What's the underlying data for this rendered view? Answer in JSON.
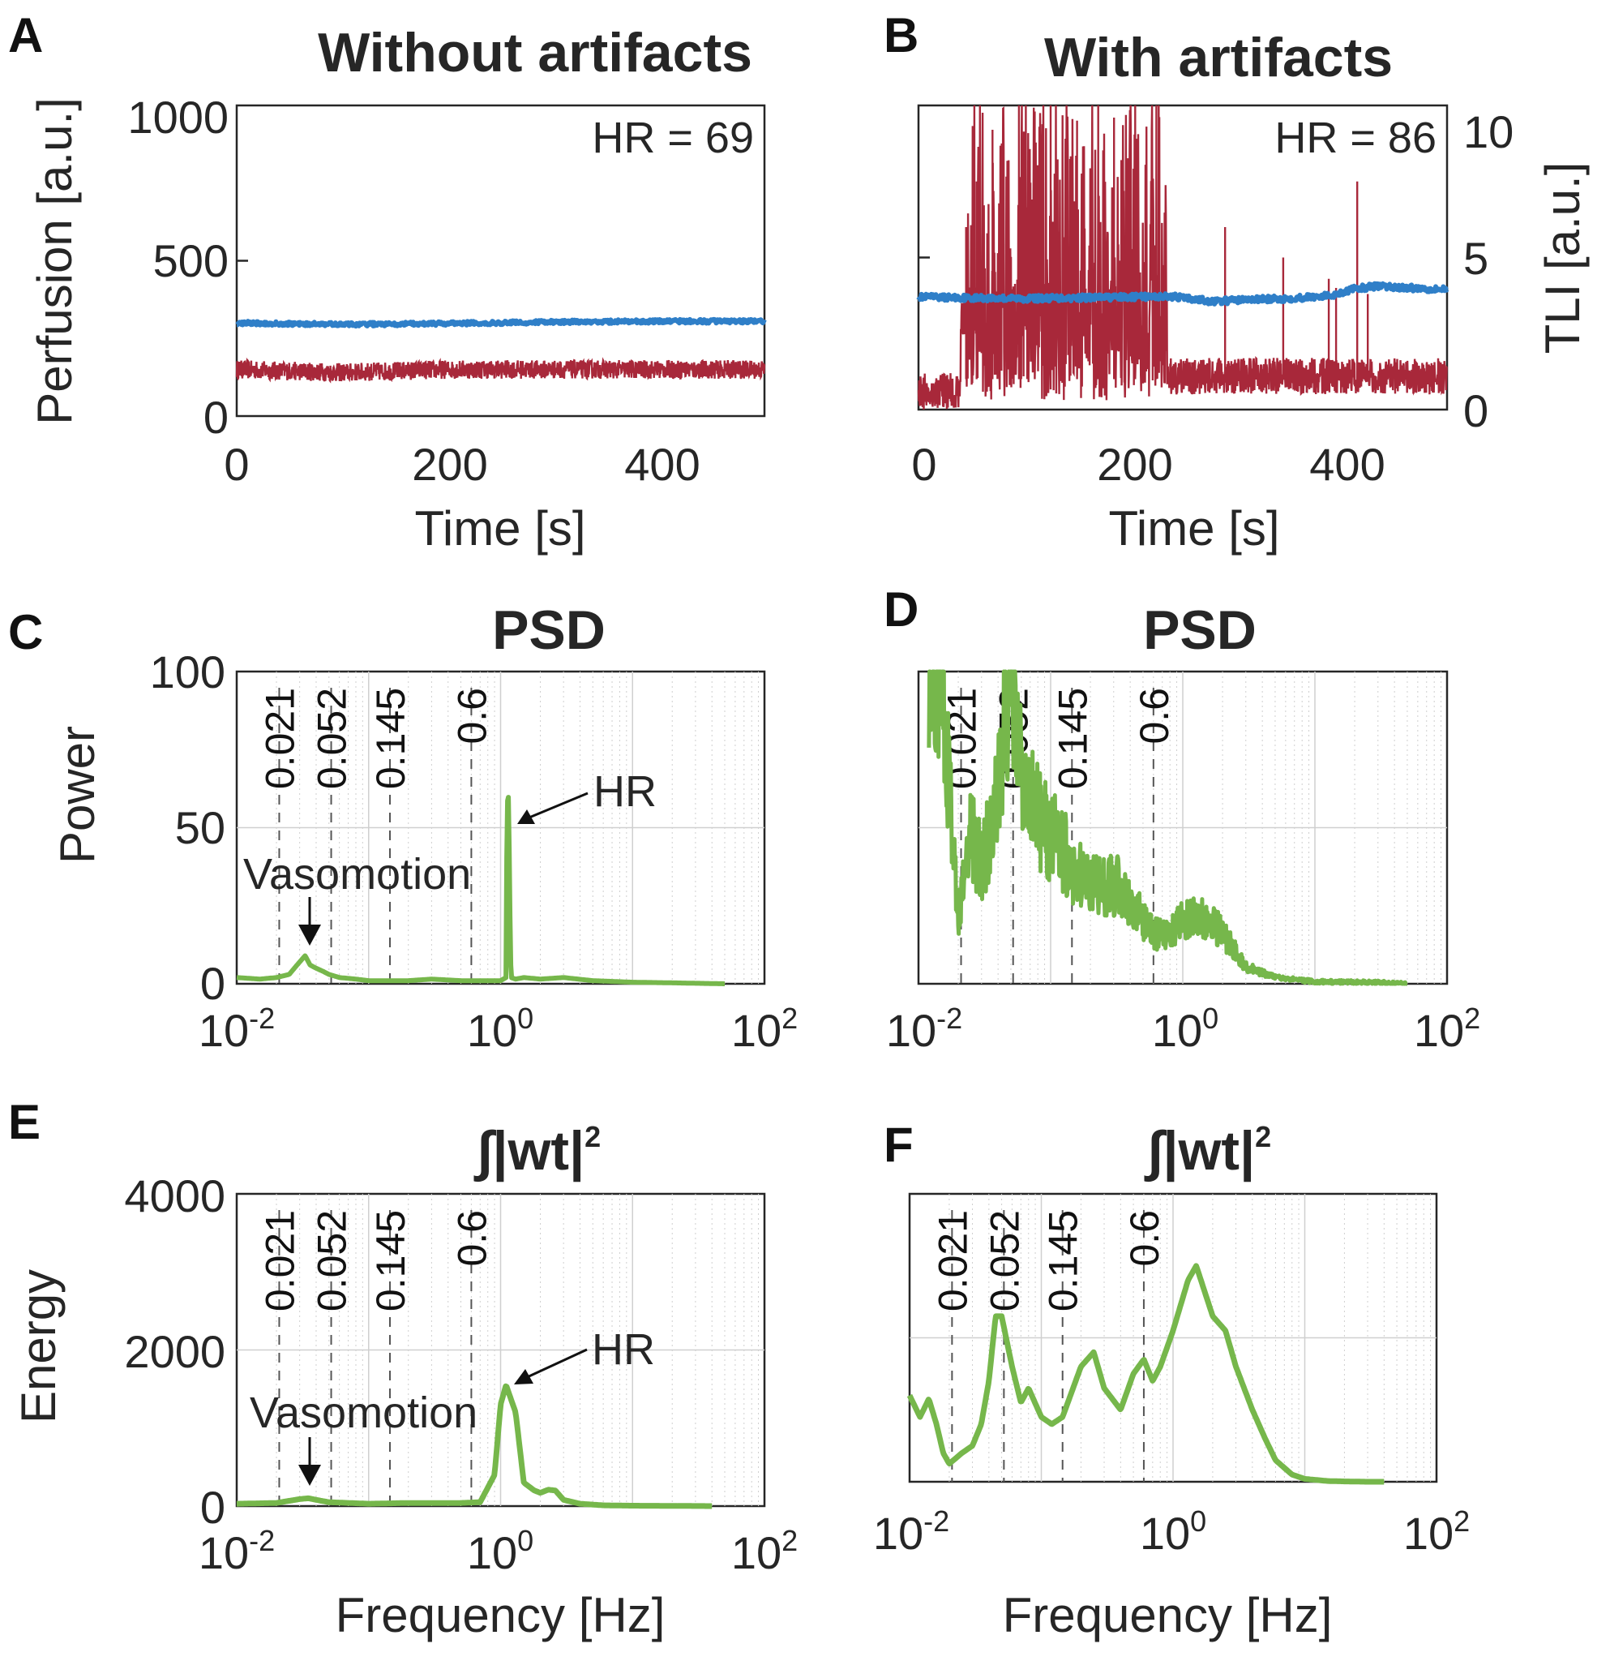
{
  "colors": {
    "perfusion": "#2f7fc8",
    "tli": "#a8283a",
    "spectrum": "#76b74b",
    "axis": "#262626",
    "grid": "#cfcfcf",
    "bandline": "#555555"
  },
  "band_labels": [
    "0.021",
    "0.052",
    "0.145",
    "0.6"
  ],
  "panels": {
    "A": {
      "letter": "A",
      "title": "Without artifacts",
      "hr_text": "HR = 69",
      "ylabel": "Perfusion [a.u.]",
      "xlabel": "Time [s]",
      "yticks": [
        "0",
        "500",
        "1000"
      ],
      "xticks": [
        "0",
        "200",
        "400"
      ]
    },
    "B": {
      "letter": "B",
      "title": "With artifacts",
      "hr_text": "HR = 86",
      "ylabel_right": "TLI [a.u.]",
      "xlabel": "Time [s]",
      "yticks_right": [
        "0",
        "5",
        "10"
      ],
      "xticks": [
        "0",
        "200",
        "400"
      ]
    },
    "C": {
      "letter": "C",
      "title": "PSD",
      "ylabel": "Power",
      "yticks": [
        "0",
        "50",
        "100"
      ],
      "hr_label": "HR",
      "vaso_label": "Vasomotion"
    },
    "D": {
      "letter": "D",
      "title": "PSD"
    },
    "E": {
      "letter": "E",
      "title": "∫|wt|",
      "title_sup": "2",
      "ylabel": "Energy",
      "xlabel": "Frequency [Hz]",
      "yticks": [
        "0",
        "2000",
        "4000"
      ],
      "hr_label": "HR",
      "vaso_label": "Vasomotion"
    },
    "F": {
      "letter": "F",
      "title": "∫|wt|",
      "title_sup": "2",
      "xlabel": "Frequency [Hz]"
    }
  },
  "freq_ticks": [
    {
      "base": "10",
      "exp": "-2"
    },
    {
      "base": "10",
      "exp": "0"
    },
    {
      "base": "10",
      "exp": "2"
    }
  ],
  "chart_data": [
    {
      "id": "A",
      "type": "line",
      "title": "Without artifacts",
      "xlabel": "Time [s]",
      "ylabel": "Perfusion [a.u.]",
      "xlim": [
        0,
        500
      ],
      "ylim": [
        0,
        1000
      ],
      "series": [
        {
          "name": "Perfusion",
          "axis": "left",
          "mean": 300,
          "noise": 6,
          "x": [
            0,
            100,
            200,
            300,
            400,
            500
          ],
          "values": [
            300,
            295,
            298,
            303,
            305,
            305
          ]
        },
        {
          "name": "TLI",
          "axis": "right",
          "mean": 1.5,
          "noise": 0.3,
          "x": [
            0,
            100,
            200,
            300,
            400,
            500
          ],
          "values": [
            1.5,
            1.4,
            1.5,
            1.5,
            1.5,
            1.5
          ]
        }
      ]
    },
    {
      "id": "B",
      "type": "line",
      "title": "With artifacts",
      "xlabel": "Time [s]",
      "ylabel_right": "TLI [a.u.]",
      "xlim": [
        0,
        500
      ],
      "ylim": [
        0,
        1000
      ],
      "ylim_right": [
        0,
        10
      ],
      "series": [
        {
          "name": "Perfusion",
          "axis": "left",
          "x": [
            0,
            100,
            200,
            240,
            280,
            300,
            350,
            390,
            410,
            430,
            500
          ],
          "values": [
            370,
            365,
            370,
            372,
            355,
            360,
            365,
            375,
            395,
            405,
            395
          ]
        },
        {
          "name": "TLI",
          "axis": "right",
          "baseline_segments": [
            [
              0,
              40,
              0.6
            ],
            [
              40,
              235,
              3.0
            ],
            [
              235,
              500,
              1.1
            ]
          ],
          "noise": 0.6,
          "burst_ranges": [
            [
              45,
              235
            ]
          ],
          "burst_max": 10,
          "spikes": [
            [
              45,
              6.0
            ],
            [
              55,
              7.5
            ],
            [
              70,
              9.2
            ],
            [
              95,
              10
            ],
            [
              110,
              9.8
            ],
            [
              125,
              10
            ],
            [
              150,
              9.5
            ],
            [
              170,
              10
            ],
            [
              185,
              9.6
            ],
            [
              205,
              10
            ],
            [
              225,
              10
            ],
            [
              290,
              6.0
            ],
            [
              345,
              5.0
            ],
            [
              388,
              4.3
            ],
            [
              395,
              4.0
            ],
            [
              415,
              7.5
            ],
            [
              425,
              3.8
            ]
          ]
        }
      ]
    },
    {
      "id": "C",
      "type": "line",
      "title": "PSD",
      "xscale": "log",
      "xlim": [
        0.01,
        100
      ],
      "ylim": [
        0,
        100
      ],
      "ylabel": "Power",
      "band_lines": [
        0.021,
        0.052,
        0.145,
        0.6
      ],
      "series": [
        {
          "name": "PSD",
          "x": [
            0.01,
            0.015,
            0.02,
            0.025,
            0.03,
            0.033,
            0.036,
            0.04,
            0.045,
            0.05,
            0.06,
            0.08,
            0.1,
            0.2,
            0.3,
            0.5,
            0.8,
            1.0,
            1.1,
            1.12,
            1.15,
            1.18,
            1.2,
            1.3,
            1.5,
            2,
            3,
            5,
            10,
            20,
            50
          ],
          "values": [
            2,
            1.5,
            2,
            3,
            7,
            9,
            6,
            5,
            4,
            3,
            2,
            1.5,
            1,
            1,
            1.5,
            1,
            1,
            1,
            2,
            58,
            60,
            20,
            2,
            1.5,
            2,
            1.5,
            2,
            1,
            0.5,
            0.3,
            0
          ]
        }
      ],
      "annotations": [
        {
          "text": "HR",
          "x": 1.15,
          "y": 60
        },
        {
          "text": "Vasomotion",
          "x": 0.033,
          "y": 9
        }
      ]
    },
    {
      "id": "D",
      "type": "line",
      "title": "PSD",
      "xscale": "log",
      "xlim": [
        0.01,
        100
      ],
      "ylim": [
        0,
        100
      ],
      "band_lines": [
        0.021,
        0.052,
        0.145,
        0.6
      ],
      "series": [
        {
          "name": "PSD",
          "x": [
            0.012,
            0.013,
            0.015,
            0.017,
            0.02,
            0.025,
            0.03,
            0.04,
            0.05,
            0.06,
            0.08,
            0.1,
            0.15,
            0.2,
            0.3,
            0.4,
            0.6,
            0.8,
            1.0,
            1.5,
            2,
            3,
            5,
            10,
            20,
            50
          ],
          "values": [
            100,
            100,
            100,
            60,
            20,
            45,
            35,
            55,
            100,
            60,
            50,
            45,
            35,
            30,
            30,
            25,
            15,
            15,
            20,
            20,
            15,
            5,
            2,
            0.5,
            0.3,
            0
          ],
          "noise": 14
        }
      ]
    },
    {
      "id": "E",
      "type": "line",
      "title": "∫|wt|²",
      "xscale": "log",
      "xlim": [
        0.01,
        100
      ],
      "ylim": [
        0,
        4000
      ],
      "xlabel": "Frequency [Hz]",
      "ylabel": "Energy",
      "band_lines": [
        0.021,
        0.052,
        0.145,
        0.6
      ],
      "series": [
        {
          "name": "Energy",
          "x": [
            0.01,
            0.02,
            0.03,
            0.035,
            0.04,
            0.05,
            0.1,
            0.2,
            0.5,
            0.7,
            0.9,
            1.0,
            1.1,
            1.3,
            1.5,
            1.8,
            2,
            2.3,
            2.6,
            3,
            4,
            6,
            10,
            20,
            40
          ],
          "values": [
            30,
            40,
            90,
            100,
            80,
            50,
            30,
            40,
            40,
            50,
            400,
            1300,
            1550,
            1200,
            300,
            200,
            170,
            210,
            200,
            80,
            30,
            10,
            5,
            3,
            0
          ]
        }
      ],
      "annotations": [
        {
          "text": "HR",
          "x": 1.1,
          "y": 1550
        },
        {
          "text": "Vasomotion",
          "x": 0.03,
          "y": 100
        }
      ]
    },
    {
      "id": "F",
      "type": "line",
      "title": "∫|wt|²",
      "xscale": "log",
      "xlim": [
        0.01,
        100
      ],
      "ylim": [
        0,
        4000
      ],
      "xlabel": "Frequency [Hz]",
      "band_lines": [
        0.021,
        0.052,
        0.145,
        0.6
      ],
      "series": [
        {
          "name": "Energy",
          "x": [
            0.01,
            0.012,
            0.014,
            0.016,
            0.018,
            0.02,
            0.025,
            0.03,
            0.035,
            0.04,
            0.045,
            0.05,
            0.06,
            0.07,
            0.08,
            0.1,
            0.12,
            0.145,
            0.2,
            0.25,
            0.3,
            0.4,
            0.5,
            0.6,
            0.7,
            0.8,
            1.0,
            1.3,
            1.5,
            2,
            2.5,
            3,
            4,
            5,
            6,
            8,
            10,
            15,
            20,
            30,
            40
          ],
          "values": [
            1200,
            900,
            1150,
            800,
            400,
            250,
            400,
            500,
            800,
            1400,
            2300,
            2300,
            1600,
            1100,
            1300,
            900,
            800,
            900,
            1600,
            1800,
            1300,
            1000,
            1500,
            1700,
            1400,
            1600,
            2100,
            2800,
            3000,
            2300,
            2100,
            1600,
            1000,
            600,
            300,
            100,
            40,
            10,
            5,
            0,
            0
          ]
        }
      ]
    }
  ]
}
